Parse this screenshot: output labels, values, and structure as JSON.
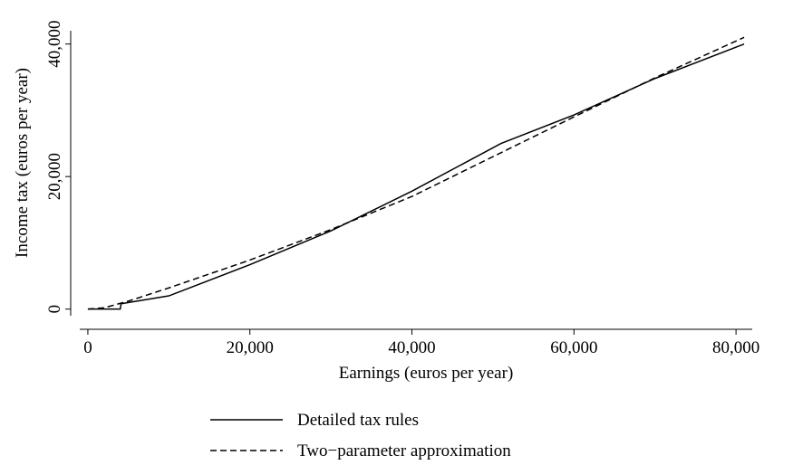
{
  "chart_data": {
    "type": "line",
    "xlabel": "Earnings (euros per year)",
    "ylabel": "Income tax (euros per year)",
    "xlim": [
      -1000,
      82000
    ],
    "ylim": [
      -1000,
      42000
    ],
    "xticks": [
      0,
      {
        "value": 20000,
        "label": "20,000"
      },
      {
        "value": 40000,
        "label": "40,000"
      },
      {
        "value": 60000,
        "label": "60,000"
      },
      {
        "value": 80000,
        "label": "80,000"
      }
    ],
    "yticks": [
      0,
      {
        "value": 20000,
        "label": "20,000"
      },
      {
        "value": 40000,
        "label": "40,000"
      }
    ],
    "grid": false,
    "legend": "bottom",
    "series": [
      {
        "name": "Detailed tax rules",
        "color": "#000000",
        "dash": "solid",
        "x": [
          0,
          4000,
          4100,
          10000,
          20000,
          30000,
          40000,
          51000,
          60000,
          70000,
          81000
        ],
        "values": [
          0,
          0,
          800,
          2000,
          6700,
          11800,
          17800,
          25000,
          29300,
          34800,
          40000
        ]
      },
      {
        "name": "Two−parameter approximation",
        "color": "#000000",
        "dash": "dashed",
        "x": [
          0,
          2000,
          5000,
          10000,
          20000,
          30000,
          40000,
          50000,
          60000,
          70000,
          81000
        ],
        "values": [
          0,
          200,
          1200,
          3200,
          7400,
          12000,
          17000,
          23000,
          29000,
          34900,
          41000
        ]
      }
    ]
  }
}
